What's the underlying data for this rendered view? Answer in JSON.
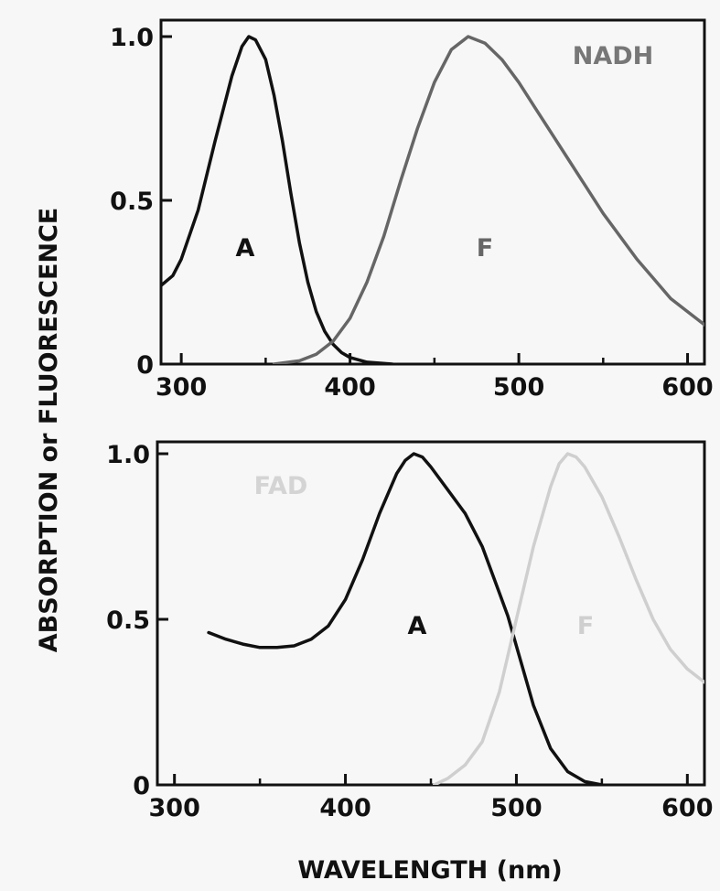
{
  "chart_data": [
    {
      "type": "line",
      "title": "NADH",
      "title_color": "#777777",
      "x_ticks": [
        "300",
        "400",
        "500",
        "600"
      ],
      "y_ticks": [
        "0",
        "0.5",
        "1.0"
      ],
      "xlim": [
        288,
        610
      ],
      "ylim": [
        0,
        1
      ],
      "series": [
        {
          "name": "A",
          "color": "#111111",
          "points": [
            [
              288,
              0.24
            ],
            [
              295,
              0.27
            ],
            [
              300,
              0.32
            ],
            [
              310,
              0.47
            ],
            [
              320,
              0.68
            ],
            [
              330,
              0.88
            ],
            [
              336,
              0.97
            ],
            [
              340,
              1.0
            ],
            [
              344,
              0.99
            ],
            [
              350,
              0.93
            ],
            [
              355,
              0.82
            ],
            [
              360,
              0.68
            ],
            [
              365,
              0.52
            ],
            [
              370,
              0.37
            ],
            [
              375,
              0.25
            ],
            [
              380,
              0.16
            ],
            [
              385,
              0.1
            ],
            [
              390,
              0.06
            ],
            [
              395,
              0.035
            ],
            [
              400,
              0.02
            ],
            [
              410,
              0.006
            ],
            [
              425,
              0.0
            ]
          ]
        },
        {
          "name": "F",
          "color": "#666666",
          "points": [
            [
              355,
              0.0
            ],
            [
              370,
              0.01
            ],
            [
              380,
              0.03
            ],
            [
              390,
              0.07
            ],
            [
              400,
              0.14
            ],
            [
              410,
              0.25
            ],
            [
              420,
              0.39
            ],
            [
              430,
              0.56
            ],
            [
              440,
              0.72
            ],
            [
              450,
              0.86
            ],
            [
              460,
              0.96
            ],
            [
              470,
              1.0
            ],
            [
              480,
              0.98
            ],
            [
              490,
              0.93
            ],
            [
              500,
              0.86
            ],
            [
              510,
              0.78
            ],
            [
              520,
              0.7
            ],
            [
              530,
              0.62
            ],
            [
              540,
              0.54
            ],
            [
              550,
              0.46
            ],
            [
              560,
              0.39
            ],
            [
              570,
              0.32
            ],
            [
              580,
              0.26
            ],
            [
              590,
              0.2
            ],
            [
              600,
              0.16
            ],
            [
              610,
              0.12
            ]
          ]
        }
      ]
    },
    {
      "type": "line",
      "title": "FAD",
      "title_color": "#d4d4d4",
      "x_ticks": [
        "300",
        "400",
        "500",
        "600"
      ],
      "y_ticks": [
        "0",
        "0.5",
        "1.0"
      ],
      "xlim": [
        290,
        610
      ],
      "ylim": [
        0,
        1
      ],
      "series": [
        {
          "name": "A",
          "color": "#111111",
          "points": [
            [
              320,
              0.46
            ],
            [
              330,
              0.44
            ],
            [
              340,
              0.425
            ],
            [
              350,
              0.415
            ],
            [
              360,
              0.415
            ],
            [
              370,
              0.42
            ],
            [
              380,
              0.44
            ],
            [
              390,
              0.48
            ],
            [
              400,
              0.56
            ],
            [
              410,
              0.68
            ],
            [
              420,
              0.82
            ],
            [
              430,
              0.94
            ],
            [
              435,
              0.98
            ],
            [
              440,
              1.0
            ],
            [
              445,
              0.99
            ],
            [
              450,
              0.96
            ],
            [
              460,
              0.89
            ],
            [
              470,
              0.82
            ],
            [
              480,
              0.72
            ],
            [
              490,
              0.58
            ],
            [
              495,
              0.51
            ],
            [
              500,
              0.42
            ],
            [
              510,
              0.24
            ],
            [
              520,
              0.11
            ],
            [
              530,
              0.04
            ],
            [
              540,
              0.01
            ],
            [
              550,
              0.0
            ]
          ]
        },
        {
          "name": "F",
          "color": "#cfcfcf",
          "points": [
            [
              452,
              0.0
            ],
            [
              460,
              0.02
            ],
            [
              470,
              0.06
            ],
            [
              480,
              0.13
            ],
            [
              490,
              0.28
            ],
            [
              500,
              0.5
            ],
            [
              510,
              0.72
            ],
            [
              520,
              0.9
            ],
            [
              525,
              0.97
            ],
            [
              530,
              1.0
            ],
            [
              535,
              0.99
            ],
            [
              540,
              0.96
            ],
            [
              550,
              0.87
            ],
            [
              560,
              0.75
            ],
            [
              570,
              0.62
            ],
            [
              580,
              0.5
            ],
            [
              590,
              0.41
            ],
            [
              600,
              0.35
            ],
            [
              610,
              0.31
            ]
          ]
        }
      ]
    }
  ],
  "shared": {
    "ylabel": "ABSORPTION or FLUORESCENCE",
    "xlabel": "WAVELENGTH (nm)"
  }
}
